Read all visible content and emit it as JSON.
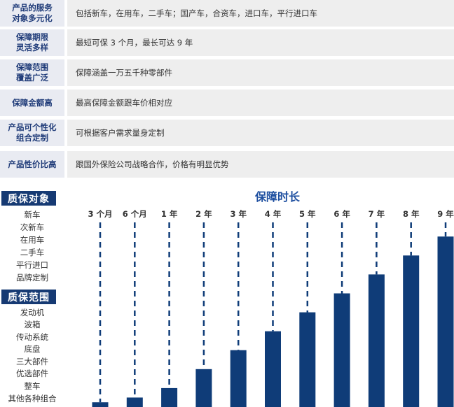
{
  "features": [
    {
      "label": "产品的服务\n对象多元化",
      "value": "包括新车，在用车，二手车；国产车，合资车，进口车，平行进口车"
    },
    {
      "label": "保障期限\n灵活多样",
      "value": "最短可保 3 个月，最长可达 9 年"
    },
    {
      "label": "保障范围\n覆盖广泛",
      "value": "保障涵盖一万五千种零部件"
    },
    {
      "label": "保障金额高",
      "value": "最高保障金额跟车价相对应"
    },
    {
      "label": "产品可个性化\n组合定制",
      "value": "可根据客户需求量身定制"
    },
    {
      "label": "产品性价比高",
      "value": "跟国外保险公司战略合作，价格有明显优势"
    }
  ],
  "objects_section": {
    "title": "质保对象",
    "items": [
      "新车",
      "次新车",
      "在用车",
      "二手车",
      "平行进口",
      "品牌定制"
    ]
  },
  "coverage_section": {
    "title": "质保范围",
    "items": [
      "发动机",
      "波箱",
      "传动系统",
      "底盘",
      "三大部件",
      "优选部件",
      "整车",
      "其他各种组合"
    ]
  },
  "colors": {
    "bar": "#0f3c78",
    "header_bg": "#163a73",
    "label_bg": "#e9ebf2",
    "value_bg": "#eeeeee",
    "title": "#1e4fa0"
  },
  "chart_data": {
    "type": "bar",
    "title": "保障时长",
    "categories": [
      "3 个月",
      "6 个月",
      "1 年",
      "2 年",
      "3 年",
      "4 年",
      "5 年",
      "6 年",
      "7 年",
      "8 年",
      "9 年"
    ],
    "values": [
      0.25,
      0.5,
      1,
      2,
      3,
      4,
      5,
      6,
      7,
      8,
      9
    ],
    "ylim": [
      0,
      9.6
    ]
  }
}
